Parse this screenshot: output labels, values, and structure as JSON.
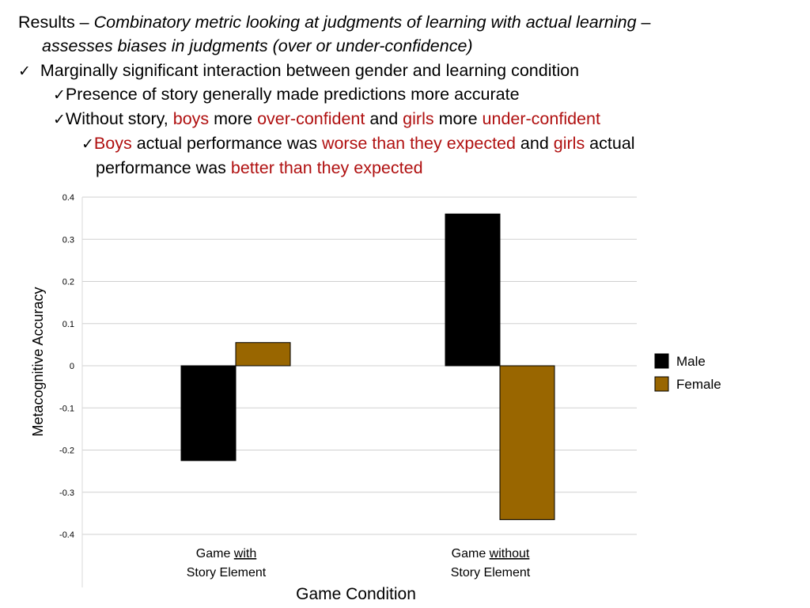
{
  "slide": {
    "line1": {
      "lead": "Results – ",
      "italic_a": "Combinatory metric looking at judgments of learning with actual learning",
      "dash": " –"
    },
    "line2": {
      "italic": "assesses biases in judgments (over or under-confidence)"
    },
    "bullet1": {
      "check": "✓",
      "text": "Marginally significant interaction between gender and learning condition"
    },
    "bullet2": {
      "check": "✓",
      "text": "Presence of story generally made predictions more accurate"
    },
    "bullet3": {
      "check": "✓",
      "t1": "Without story, ",
      "r1": "boys",
      "t2": " more ",
      "r2": "over-confident",
      "t3": " and ",
      "r3": "girls",
      "t4": " more ",
      "r4": "under-confident"
    },
    "bullet4": {
      "check": "✓",
      "r1": "Boys",
      "t1": " actual performance was ",
      "r2": "worse than they expected",
      "t2": " and ",
      "r3": "girls",
      "t3": " actual"
    },
    "bullet4_cont": {
      "t1": "performance was ",
      "r1": "better than they expected"
    }
  },
  "chart_data": {
    "type": "bar",
    "categories": [
      {
        "line1_prefix": "Game ",
        "line1_underlined": "with",
        "line2": "Story Element"
      },
      {
        "line1_prefix": "Game ",
        "line1_underlined": "without",
        "line2": "Story Element"
      }
    ],
    "series": [
      {
        "name": "Male",
        "color": "#000000",
        "values": [
          -0.225,
          0.36
        ]
      },
      {
        "name": "Female",
        "color": "#996600",
        "values": [
          0.055,
          -0.365
        ]
      }
    ],
    "xlabel": "Game Condition",
    "ylabel": "Metacognitive Accuracy",
    "ylim": [
      -0.4,
      0.4
    ],
    "yticks": [
      "0.4",
      "0.3",
      "0.2",
      "0.1",
      "0",
      "-0.1",
      "-0.2",
      "-0.3",
      "-0.4"
    ],
    "grid": true,
    "legend_position": "right"
  }
}
